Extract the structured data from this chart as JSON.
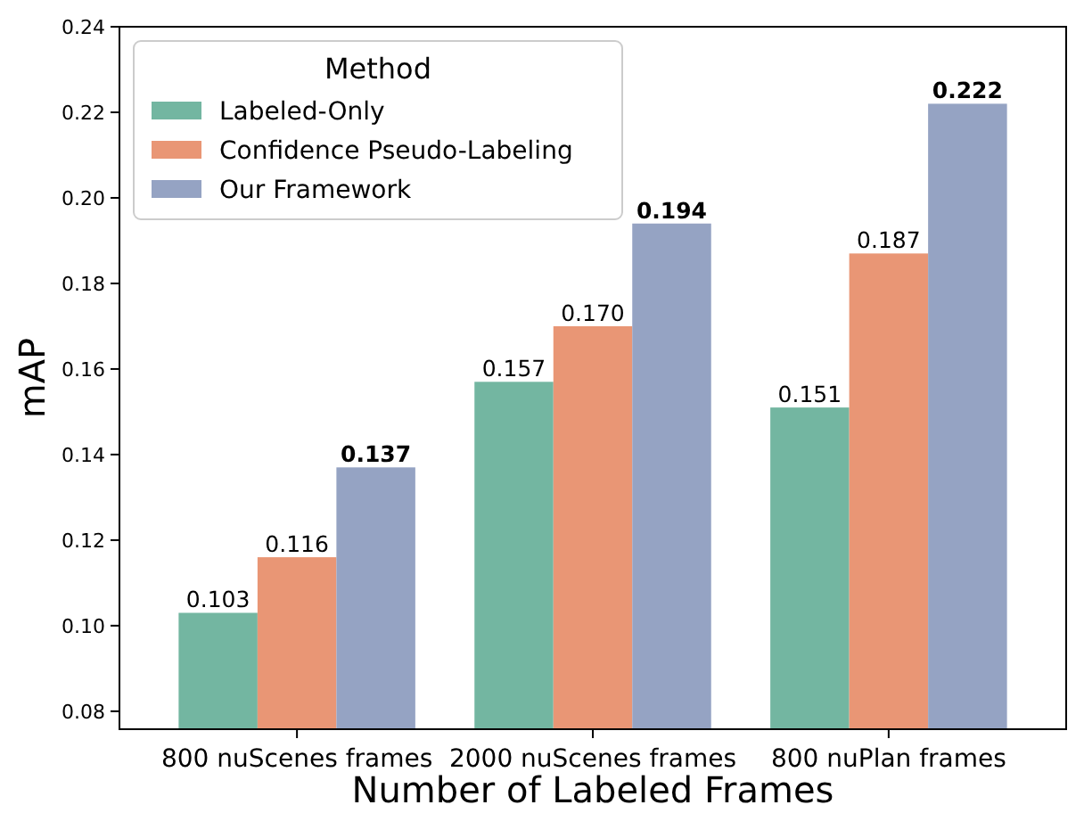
{
  "chart_data": {
    "type": "bar",
    "xlabel": "Number of Labeled Frames",
    "ylabel": "mAP",
    "legend_title": "Method",
    "categories": [
      "800 nuScenes frames",
      "2000 nuScenes frames",
      "800 nuPlan frames"
    ],
    "series": [
      {
        "name": "Labeled-Only",
        "color": "#73b6a1",
        "values": [
          0.103,
          0.157,
          0.151
        ]
      },
      {
        "name": "Confidence Pseudo-Labeling",
        "color": "#e99675",
        "values": [
          0.116,
          0.17,
          0.187
        ]
      },
      {
        "name": "Our Framework",
        "color": "#95a3c3",
        "values": [
          0.137,
          0.194,
          0.222
        ]
      }
    ],
    "ylim": [
      0.0758,
      0.24
    ],
    "yticks": [
      {
        "value": 0.08,
        "label": "0.08"
      },
      {
        "value": 0.1,
        "label": "0.10"
      },
      {
        "value": 0.12,
        "label": "0.12"
      },
      {
        "value": 0.14,
        "label": "0.14"
      },
      {
        "value": 0.16,
        "label": "0.16"
      },
      {
        "value": 0.18,
        "label": "0.18"
      },
      {
        "value": 0.2,
        "label": "0.20"
      },
      {
        "value": 0.22,
        "label": "0.22"
      },
      {
        "value": 0.24,
        "label": "0.24"
      }
    ],
    "value_labels": [
      [
        "0.103",
        "0.157",
        "0.151"
      ],
      [
        "0.116",
        "0.170",
        "0.187"
      ],
      [
        "0.137",
        "0.194",
        "0.222"
      ]
    ],
    "legend": "top left"
  }
}
